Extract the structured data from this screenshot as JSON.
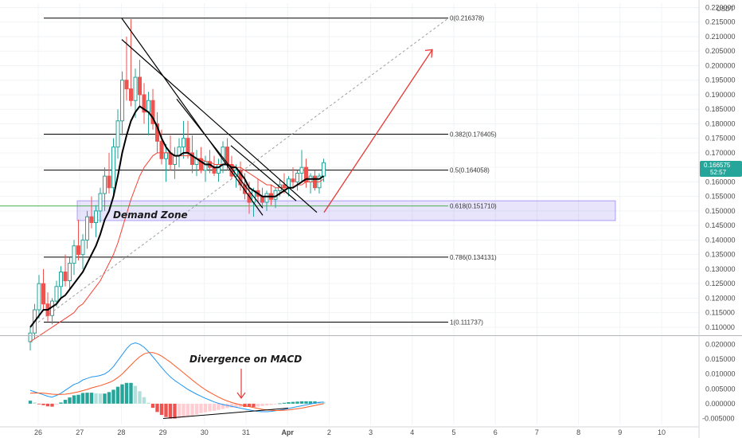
{
  "chart_data": [
    {
      "type": "candlestick",
      "currency": "USDT",
      "x_ticks": [
        "26",
        "27",
        "28",
        "29",
        "30",
        "31",
        "Apr",
        "2",
        "3",
        "4",
        "5",
        "6",
        "7",
        "8",
        "9",
        "10"
      ],
      "y_ticks": [
        "0.220000",
        "0.215000",
        "0.210000",
        "0.205000",
        "0.200000",
        "0.195000",
        "0.190000",
        "0.185000",
        "0.180000",
        "0.175000",
        "0.170000",
        "0.165000",
        "0.160000",
        "0.155000",
        "0.150000",
        "0.145000",
        "0.140000",
        "0.135000",
        "0.130000",
        "0.125000",
        "0.120000",
        "0.115000",
        "0.110000"
      ],
      "ylim": [
        0.1075,
        0.2215
      ],
      "last_price": {
        "value": "0.166575",
        "countdown": "52:57",
        "color": "#26a69a"
      },
      "fib_levels": [
        {
          "label": "0(0.216378)",
          "value": 0.216378,
          "color": "#000000"
        },
        {
          "label": "0.382(0.176405)",
          "value": 0.176405,
          "color": "#000000"
        },
        {
          "label": "0.5(0.164058)",
          "value": 0.164058,
          "color": "#000000"
        },
        {
          "label": "0.618(0.151710)",
          "value": 0.15171,
          "color": "#4caf50"
        },
        {
          "label": "0.786(0.134131)",
          "value": 0.134131,
          "color": "#000000"
        },
        {
          "label": "1(0.111737)",
          "value": 0.111737,
          "color": "#000000"
        }
      ],
      "demand_zone": {
        "label": "Demand Zone",
        "top": 0.1535,
        "bottom": 0.1467,
        "color": "#7b68ee"
      },
      "ohlc": [
        [
          0.105,
          0.11,
          0.102,
          0.108
        ],
        [
          0.108,
          0.118,
          0.106,
          0.116
        ],
        [
          0.116,
          0.128,
          0.113,
          0.125
        ],
        [
          0.125,
          0.13,
          0.116,
          0.118
        ],
        [
          0.118,
          0.122,
          0.112,
          0.114
        ],
        [
          0.114,
          0.12,
          0.111,
          0.119
        ],
        [
          0.119,
          0.126,
          0.117,
          0.124
        ],
        [
          0.124,
          0.131,
          0.12,
          0.129
        ],
        [
          0.129,
          0.135,
          0.124,
          0.126
        ],
        [
          0.126,
          0.134,
          0.123,
          0.132
        ],
        [
          0.132,
          0.14,
          0.128,
          0.138
        ],
        [
          0.138,
          0.147,
          0.133,
          0.135
        ],
        [
          0.135,
          0.142,
          0.13,
          0.14
        ],
        [
          0.14,
          0.15,
          0.137,
          0.148
        ],
        [
          0.148,
          0.155,
          0.144,
          0.146
        ],
        [
          0.146,
          0.152,
          0.141,
          0.15
        ],
        [
          0.15,
          0.158,
          0.146,
          0.156
        ],
        [
          0.156,
          0.165,
          0.15,
          0.162
        ],
        [
          0.162,
          0.17,
          0.156,
          0.158
        ],
        [
          0.158,
          0.175,
          0.155,
          0.172
        ],
        [
          0.172,
          0.185,
          0.168,
          0.181
        ],
        [
          0.181,
          0.198,
          0.176,
          0.195
        ],
        [
          0.195,
          0.21,
          0.188,
          0.192
        ],
        [
          0.192,
          0.216,
          0.186,
          0.188
        ],
        [
          0.188,
          0.199,
          0.182,
          0.196
        ],
        [
          0.196,
          0.202,
          0.186,
          0.19
        ],
        [
          0.19,
          0.194,
          0.18,
          0.184
        ],
        [
          0.184,
          0.191,
          0.176,
          0.188
        ],
        [
          0.188,
          0.192,
          0.178,
          0.18
        ],
        [
          0.18,
          0.184,
          0.17,
          0.174
        ],
        [
          0.174,
          0.178,
          0.166,
          0.168
        ],
        [
          0.168,
          0.173,
          0.16,
          0.17
        ],
        [
          0.17,
          0.176,
          0.164,
          0.166
        ],
        [
          0.166,
          0.172,
          0.161,
          0.169
        ],
        [
          0.169,
          0.175,
          0.165,
          0.172
        ],
        [
          0.172,
          0.181,
          0.168,
          0.175
        ],
        [
          0.175,
          0.181,
          0.168,
          0.17
        ],
        [
          0.17,
          0.176,
          0.163,
          0.166
        ],
        [
          0.166,
          0.171,
          0.162,
          0.168
        ],
        [
          0.168,
          0.172,
          0.163,
          0.164
        ],
        [
          0.164,
          0.169,
          0.16,
          0.167
        ],
        [
          0.167,
          0.171,
          0.163,
          0.165
        ],
        [
          0.165,
          0.169,
          0.162,
          0.163
        ],
        [
          0.163,
          0.168,
          0.16,
          0.166
        ],
        [
          0.166,
          0.174,
          0.163,
          0.172
        ],
        [
          0.172,
          0.175,
          0.164,
          0.166
        ],
        [
          0.166,
          0.169,
          0.161,
          0.162
        ],
        [
          0.162,
          0.166,
          0.158,
          0.164
        ],
        [
          0.164,
          0.167,
          0.157,
          0.159
        ],
        [
          0.159,
          0.163,
          0.154,
          0.156
        ],
        [
          0.156,
          0.16,
          0.149,
          0.153
        ],
        [
          0.153,
          0.158,
          0.148,
          0.157
        ],
        [
          0.157,
          0.161,
          0.153,
          0.155
        ],
        [
          0.155,
          0.158,
          0.151,
          0.153
        ],
        [
          0.153,
          0.157,
          0.15,
          0.156
        ],
        [
          0.156,
          0.159,
          0.152,
          0.154
        ],
        [
          0.154,
          0.158,
          0.151,
          0.157
        ],
        [
          0.157,
          0.161,
          0.155,
          0.159
        ],
        [
          0.159,
          0.163,
          0.156,
          0.158
        ],
        [
          0.158,
          0.162,
          0.155,
          0.161
        ],
        [
          0.161,
          0.165,
          0.158,
          0.16
        ],
        [
          0.16,
          0.164,
          0.157,
          0.163
        ],
        [
          0.163,
          0.171,
          0.16,
          0.165
        ],
        [
          0.165,
          0.168,
          0.158,
          0.16
        ],
        [
          0.16,
          0.163,
          0.156,
          0.162
        ],
        [
          0.162,
          0.164,
          0.157,
          0.158
        ],
        [
          0.158,
          0.163,
          0.156,
          0.162
        ],
        [
          0.162,
          0.168,
          0.16,
          0.1666
        ]
      ],
      "ema_fast": [
        0.11,
        0.112,
        0.114,
        0.116,
        0.116,
        0.117,
        0.118,
        0.12,
        0.121,
        0.123,
        0.125,
        0.127,
        0.129,
        0.132,
        0.135,
        0.138,
        0.142,
        0.147,
        0.15,
        0.155,
        0.162,
        0.17,
        0.176,
        0.181,
        0.184,
        0.186,
        0.185,
        0.184,
        0.182,
        0.179,
        0.175,
        0.172,
        0.17,
        0.169,
        0.169,
        0.17,
        0.17,
        0.169,
        0.168,
        0.167,
        0.166,
        0.166,
        0.165,
        0.165,
        0.166,
        0.166,
        0.165,
        0.165,
        0.163,
        0.161,
        0.158,
        0.157,
        0.156,
        0.155,
        0.155,
        0.155,
        0.155,
        0.156,
        0.157,
        0.158,
        0.158,
        0.159,
        0.16,
        0.161,
        0.161,
        0.161,
        0.161,
        0.162
      ],
      "ema_slow": [
        0.105,
        0.106,
        0.107,
        0.108,
        0.109,
        0.11,
        0.111,
        0.112,
        0.113,
        0.114,
        0.115,
        0.117,
        0.118,
        0.12,
        0.122,
        0.124,
        0.126,
        0.129,
        0.132,
        0.135,
        0.139,
        0.144,
        0.149,
        0.154,
        0.158,
        0.162,
        0.165,
        0.167,
        0.169,
        0.17,
        0.17,
        0.17,
        0.17,
        0.169,
        0.169,
        0.169,
        0.169,
        0.169,
        0.168,
        0.168,
        0.167,
        0.167,
        0.166,
        0.166,
        0.166,
        0.166,
        0.166,
        0.165,
        0.165,
        0.164,
        0.163,
        0.162,
        0.161,
        0.16,
        0.159,
        0.159,
        0.158,
        0.158,
        0.158,
        0.158,
        0.158,
        0.159,
        0.159,
        0.16,
        0.16,
        0.16,
        0.16,
        0.161
      ],
      "annotation_down_arrow": {
        "value": 0.1495
      },
      "annotation_up_arrow": {
        "from": 0.1495,
        "to": 0.2055
      }
    },
    {
      "type": "macd",
      "title": "Divergence on MACD",
      "y_ticks": [
        "0.020000",
        "0.015000",
        "0.010000",
        "0.005000",
        "0.000000",
        "-0.005000"
      ],
      "ylim": [
        -0.007,
        0.0225
      ],
      "macd": [
        0.0045,
        0.004,
        0.0035,
        0.003,
        0.0025,
        0.0022,
        0.0028,
        0.0035,
        0.0045,
        0.0055,
        0.0065,
        0.007,
        0.008,
        0.0085,
        0.009,
        0.0092,
        0.0095,
        0.01,
        0.011,
        0.0125,
        0.0145,
        0.0165,
        0.0185,
        0.02,
        0.0205,
        0.02,
        0.019,
        0.0175,
        0.0158,
        0.014,
        0.0122,
        0.0105,
        0.009,
        0.0078,
        0.0068,
        0.0058,
        0.0048,
        0.004,
        0.0032,
        0.0025,
        0.0018,
        0.0012,
        0.0006,
        0.0001,
        -0.0003,
        -0.0006,
        -0.0009,
        -0.0012,
        -0.0015,
        -0.0018,
        -0.0021,
        -0.0024,
        -0.0026,
        -0.0027,
        -0.0027,
        -0.0026,
        -0.0024,
        -0.0022,
        -0.0019,
        -0.0016,
        -0.0013,
        -0.001,
        -0.0007,
        -0.0004,
        -0.0001,
        0.0002,
        0.0004,
        0.0006
      ],
      "signal": [
        0.0035,
        0.0036,
        0.0036,
        0.0035,
        0.0034,
        0.0032,
        0.0031,
        0.0031,
        0.0032,
        0.0034,
        0.0037,
        0.004,
        0.0044,
        0.0048,
        0.0053,
        0.0057,
        0.0061,
        0.0066,
        0.0071,
        0.0078,
        0.0088,
        0.01,
        0.0115,
        0.013,
        0.0145,
        0.0158,
        0.0168,
        0.0172,
        0.0172,
        0.0168,
        0.016,
        0.015,
        0.014,
        0.0128,
        0.0116,
        0.0104,
        0.0092,
        0.008,
        0.0068,
        0.0057,
        0.0047,
        0.0038,
        0.003,
        0.0022,
        0.0015,
        0.0009,
        0.0004,
        0.0,
        -0.0004,
        -0.0007,
        -0.001,
        -0.0013,
        -0.0016,
        -0.0019,
        -0.0021,
        -0.0022,
        -0.0023,
        -0.0023,
        -0.0022,
        -0.0021,
        -0.0019,
        -0.0017,
        -0.0015,
        -0.0012,
        -0.0009,
        -0.0006,
        -0.0003,
        0.0
      ],
      "histogram": [
        0.001,
        0.0004,
        -0.0001,
        -0.0005,
        -0.0009,
        -0.001,
        -0.0003,
        0.0004,
        0.0013,
        0.0021,
        0.0028,
        0.003,
        0.0036,
        0.0037,
        0.0037,
        0.0035,
        0.0034,
        0.0034,
        0.0039,
        0.0047,
        0.0057,
        0.0065,
        0.007,
        0.007,
        0.006,
        0.0042,
        0.0022,
        0.0003,
        -0.0014,
        -0.0028,
        -0.0038,
        -0.0045,
        -0.005,
        -0.005,
        -0.0048,
        -0.0046,
        -0.0044,
        -0.004,
        -0.0036,
        -0.0032,
        -0.0029,
        -0.0026,
        -0.0024,
        -0.0021,
        -0.0018,
        -0.0015,
        -0.0013,
        -0.0012,
        -0.0011,
        -0.0011,
        -0.0011,
        -0.0011,
        -0.001,
        -0.0008,
        -0.0006,
        -0.0004,
        -0.0001,
        0.0001,
        0.0003,
        0.0005,
        0.0006,
        0.0007,
        0.0008,
        0.0008,
        0.0008,
        0.0008,
        0.0007,
        0.0006
      ]
    }
  ],
  "colors": {
    "up": "#26a69a",
    "down": "#ef5350",
    "ema_fast": "#000000",
    "ema_slow": "#f44336",
    "macd_line": "#2196f3",
    "signal_line": "#ff5722",
    "trendline": "#000000",
    "arrow": "#e53935",
    "grid": "#f0f3f5"
  }
}
